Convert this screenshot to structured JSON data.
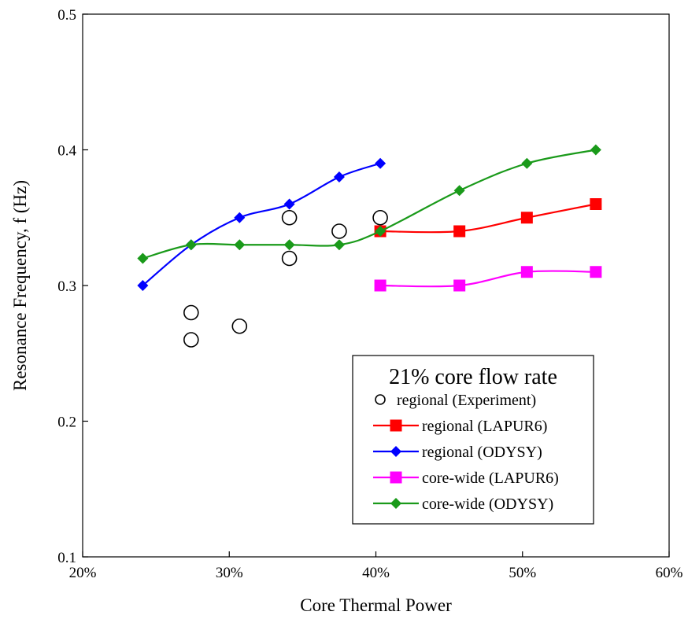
{
  "chart_data": {
    "type": "scatter",
    "title": "",
    "xlabel": "Core Thermal Power",
    "ylabel": "Resonance Frequency, f (Hz)",
    "xlim": [
      0.2,
      0.6
    ],
    "ylim": [
      0.1,
      0.5
    ],
    "x_ticks": [
      "20%",
      "30%",
      "40%",
      "50%",
      "60%"
    ],
    "y_ticks": [
      "0.1",
      "0.2",
      "0.3",
      "0.4",
      "0.5"
    ],
    "grid": false,
    "legend_title": "21% core flow rate",
    "legend_position": "bottom-right",
    "series": [
      {
        "name": "regional (Experiment)",
        "color": "#000000",
        "marker": "open-circle",
        "line": false,
        "points": [
          [
            0.274,
            0.28
          ],
          [
            0.274,
            0.26
          ],
          [
            0.307,
            0.27
          ],
          [
            0.341,
            0.35
          ],
          [
            0.341,
            0.32
          ],
          [
            0.375,
            0.34
          ],
          [
            0.403,
            0.35
          ]
        ]
      },
      {
        "name": "regional (LAPUR6)",
        "color": "#ff0000",
        "marker": "square",
        "line": true,
        "points": [
          [
            0.403,
            0.34
          ],
          [
            0.457,
            0.34
          ],
          [
            0.503,
            0.35
          ],
          [
            0.55,
            0.36
          ]
        ]
      },
      {
        "name": "regional (ODYSY)",
        "color": "#0000ff",
        "marker": "diamond",
        "line": true,
        "points": [
          [
            0.241,
            0.3
          ],
          [
            0.274,
            0.33
          ],
          [
            0.307,
            0.35
          ],
          [
            0.341,
            0.36
          ],
          [
            0.375,
            0.38
          ],
          [
            0.403,
            0.39
          ]
        ]
      },
      {
        "name": "core-wide (LAPUR6)",
        "color": "#ff00ff",
        "marker": "square",
        "line": true,
        "points": [
          [
            0.403,
            0.3
          ],
          [
            0.457,
            0.3
          ],
          [
            0.503,
            0.31
          ],
          [
            0.55,
            0.31
          ]
        ]
      },
      {
        "name": "core-wide (ODYSY)",
        "color": "#1a9a1a",
        "marker": "diamond",
        "line": true,
        "points": [
          [
            0.241,
            0.32
          ],
          [
            0.274,
            0.33
          ],
          [
            0.307,
            0.33
          ],
          [
            0.341,
            0.33
          ],
          [
            0.375,
            0.33
          ],
          [
            0.403,
            0.34
          ],
          [
            0.457,
            0.37
          ],
          [
            0.503,
            0.39
          ],
          [
            0.55,
            0.4
          ]
        ]
      }
    ]
  }
}
